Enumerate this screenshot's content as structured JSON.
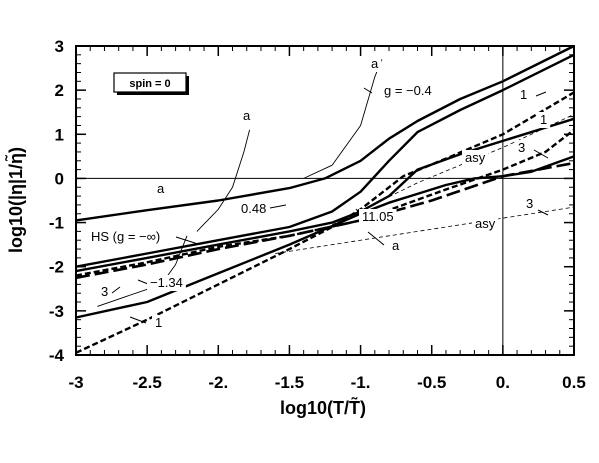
{
  "chart_data": {
    "type": "line",
    "xlabel": "log10(T/T̃)",
    "ylabel": "log10(|η|1/η̃)",
    "xlim": [
      -3,
      0.5
    ],
    "ylim": [
      -4,
      3
    ],
    "x_ticks": [
      "-3",
      "-2.5",
      "-2.",
      "-1.5",
      "-1.",
      "-0.5",
      "0.",
      "0.5"
    ],
    "y_ticks": [
      "3",
      "2",
      "1",
      "0",
      "-1",
      "-2",
      "-3",
      "-4"
    ],
    "legend_box": "spin = 0",
    "reference_lines": [
      {
        "axis": "y",
        "value": 0
      },
      {
        "axis": "x",
        "value": 0
      }
    ],
    "series": [
      {
        "style": "solid-thick",
        "x": [
          -3,
          -2.5,
          -2,
          -1.5,
          -1.25,
          -1.0,
          -0.8,
          -0.6,
          -0.3,
          0,
          0.5
        ],
        "y": [
          -0.95,
          -0.72,
          -0.5,
          -0.22,
          0.0,
          0.4,
          0.9,
          1.3,
          1.8,
          2.2,
          3.0
        ]
      },
      {
        "style": "solid-thick",
        "x": [
          -3,
          -2.5,
          -2,
          -1.5,
          -1.2,
          -1.0,
          -0.8,
          -0.6,
          -0.3,
          0,
          0.5
        ],
        "y": [
          -2.0,
          -1.7,
          -1.4,
          -1.1,
          -0.75,
          -0.3,
          0.4,
          1.05,
          1.55,
          2.0,
          2.8
        ]
      },
      {
        "style": "solid-thick",
        "x": [
          -3,
          -2.5,
          -2,
          -1.5,
          -1.2,
          -1.0,
          -0.8,
          -0.6,
          -0.3,
          0,
          0.5
        ],
        "y": [
          -2.1,
          -1.8,
          -1.5,
          -1.2,
          -1.0,
          -0.75,
          -0.4,
          0.2,
          0.55,
          0.85,
          1.35
        ]
      },
      {
        "style": "solid-thick",
        "x": [
          -3,
          -2.5,
          -2,
          -1.5,
          -1.0,
          -0.8,
          -0.6,
          -0.4,
          -0.2,
          0,
          0.2,
          0.5
        ],
        "y": [
          -3.15,
          -2.8,
          -2.15,
          -1.5,
          -0.8,
          -0.55,
          -0.35,
          -0.15,
          0.0,
          0.05,
          0.15,
          0.5
        ]
      },
      {
        "style": "dashed-thick",
        "x": [
          -3,
          -2.5,
          -2,
          -1.5,
          -1.2,
          -1.0,
          -0.7,
          -0.4,
          0,
          0.5
        ],
        "y": [
          -3.95,
          -3.2,
          -2.4,
          -1.6,
          -1.1,
          -0.7,
          0.05,
          0.45,
          1.0,
          1.95
        ]
      },
      {
        "style": "dashed-thick",
        "x": [
          -3,
          -2.5,
          -2,
          -1.5,
          -1.0,
          -0.7,
          -0.4,
          0,
          0.3,
          0.5
        ],
        "y": [
          -2.2,
          -1.9,
          -1.55,
          -1.3,
          -0.95,
          -0.6,
          -0.25,
          0.2,
          0.6,
          1.1
        ]
      },
      {
        "style": "dashed-long",
        "x": [
          -3,
          -2.5,
          -2,
          -1.5,
          -1.0,
          -0.5,
          0,
          0.5
        ],
        "y": [
          -2.25,
          -1.95,
          -1.6,
          -1.3,
          -0.95,
          -0.5,
          0.05,
          0.35
        ]
      },
      {
        "style": "dashed-thin",
        "x": [
          -1.2,
          -0.6,
          0,
          0.5
        ],
        "y": [
          -1.05,
          -0.1,
          0.7,
          1.45
        ]
      },
      {
        "style": "dashed-thin",
        "x": [
          -1.6,
          -0.5,
          0.5
        ],
        "y": [
          -1.7,
          -1.15,
          -0.65
        ]
      },
      {
        "style": "solid-thin",
        "x": [
          -1.4,
          -1.2,
          -1.0,
          -0.9,
          -0.85
        ],
        "y": [
          0,
          0.3,
          1.2,
          2.3,
          2.7
        ]
      },
      {
        "style": "solid-thin",
        "x": [
          -2.85,
          -2.4,
          -2.3,
          -2.22
        ],
        "y": [
          -2.9,
          -2.4,
          -1.95,
          -1.3
        ]
      },
      {
        "style": "solid-thin",
        "x": [
          -2.15,
          -2.0,
          -1.9,
          -1.82,
          -1.78
        ],
        "y": [
          -1.2,
          -0.7,
          -0.2,
          0.6,
          1.1
        ]
      }
    ],
    "annotations": [
      "a",
      "a",
      "a",
      "a",
      "g = −0.4",
      "1",
      "1",
      "3",
      "asy",
      "asy",
      "3",
      "0.48",
      "11.05",
      "HS (g = −∞)",
      "3",
      "−1.34",
      "1"
    ]
  }
}
